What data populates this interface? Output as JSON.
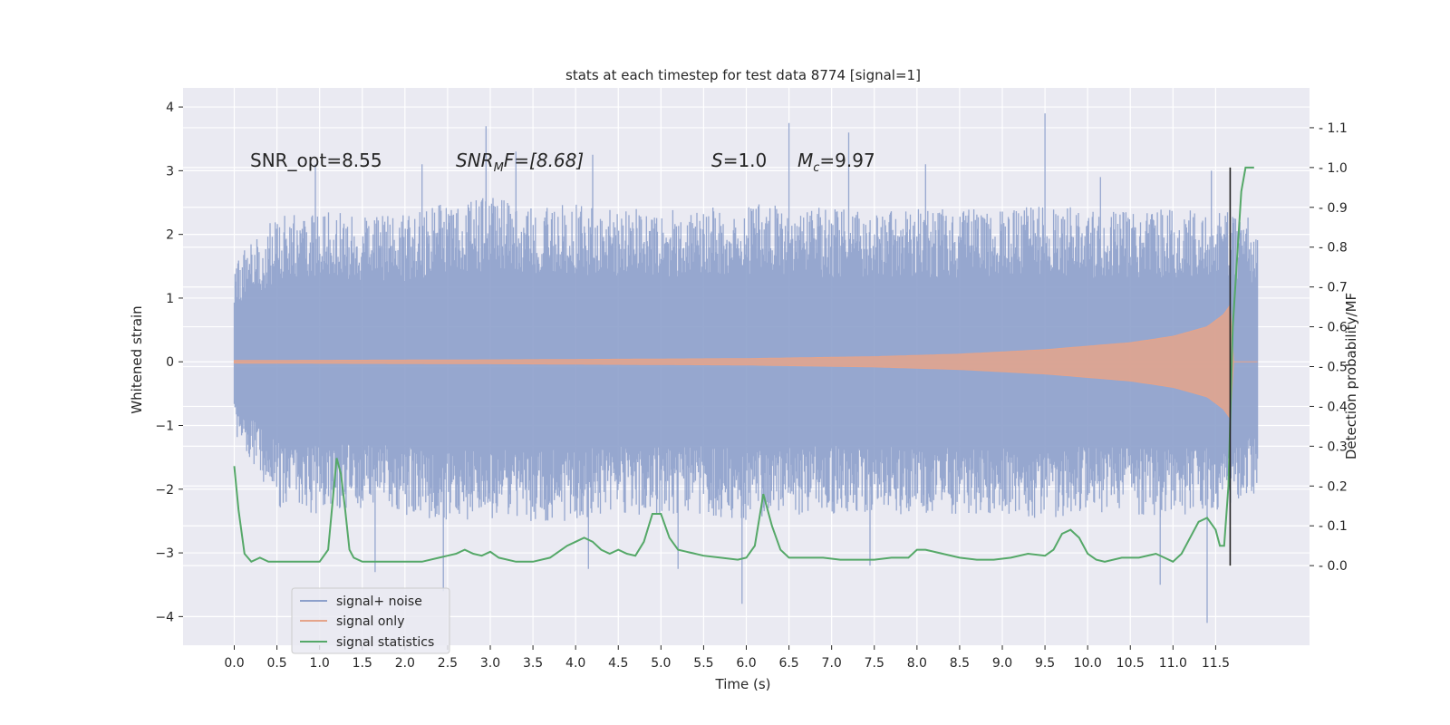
{
  "chart_data": {
    "type": "line",
    "title": "stats at each timestep for test data 8774 [signal=1]",
    "xlabel": "Time (s)",
    "ylabel": "Whitened strain",
    "ylabel_right": "Detection probability/MF",
    "xlim": [
      -0.6,
      12.6
    ],
    "ylim": [
      -4.45,
      4.3
    ],
    "ylim_right": [
      -0.2,
      1.2
    ],
    "x_ticks": [
      "0.0",
      "0.5",
      "1.0",
      "1.5",
      "2.0",
      "2.5",
      "3.0",
      "3.5",
      "4.0",
      "4.5",
      "5.0",
      "5.5",
      "6.0",
      "6.5",
      "7.0",
      "7.5",
      "8.0",
      "8.5",
      "9.0",
      "9.5",
      "10.0",
      "10.5",
      "11.0",
      "11.5"
    ],
    "y_ticks": [
      "4",
      "3",
      "2",
      "1",
      "0",
      "−1",
      "−2",
      "−3",
      "−4"
    ],
    "y_ticks_right": [
      "1.1",
      "1.0",
      "0.9",
      "0.8",
      "0.7",
      "0.6",
      "0.5",
      "0.4",
      "0.3",
      "0.2",
      "0.1",
      "0.0"
    ],
    "annotations": {
      "snr_opt": "SNR_opt=8.55",
      "snr_mf_name": "SNR",
      "snr_mf_sub": "M",
      "snr_mf_rest": "F=[8.68]",
      "s_name": "S",
      "s_rest": "=1.0",
      "mc_name": "M",
      "mc_sub": "c",
      "mc_rest": "=9.97"
    },
    "grid": true,
    "legend_position": "lower-left",
    "series": [
      {
        "name": "signal+ noise",
        "color": "#8da0cb",
        "envelope_upper": [
          [
            0.0,
            1.6
          ],
          [
            0.5,
            2.3
          ],
          [
            1.0,
            2.4
          ],
          [
            1.5,
            2.3
          ],
          [
            2.0,
            2.3
          ],
          [
            2.5,
            2.5
          ],
          [
            3.0,
            2.6
          ],
          [
            3.5,
            2.4
          ],
          [
            4.0,
            2.5
          ],
          [
            4.5,
            2.4
          ],
          [
            5.0,
            2.4
          ],
          [
            5.5,
            2.4
          ],
          [
            6.0,
            2.5
          ],
          [
            6.5,
            2.5
          ],
          [
            7.0,
            2.4
          ],
          [
            7.5,
            2.4
          ],
          [
            8.0,
            2.4
          ],
          [
            8.5,
            2.4
          ],
          [
            9.0,
            2.4
          ],
          [
            9.5,
            2.5
          ],
          [
            10.0,
            2.4
          ],
          [
            10.5,
            2.4
          ],
          [
            11.0,
            2.4
          ],
          [
            11.5,
            2.5
          ],
          [
            11.99,
            2.2
          ]
        ],
        "envelope_lower": [
          [
            0.0,
            -1.1
          ],
          [
            0.5,
            -2.3
          ],
          [
            1.0,
            -2.4
          ],
          [
            1.5,
            -2.3
          ],
          [
            2.0,
            -2.4
          ],
          [
            2.5,
            -2.5
          ],
          [
            3.0,
            -2.5
          ],
          [
            3.5,
            -2.5
          ],
          [
            4.0,
            -2.5
          ],
          [
            4.5,
            -2.4
          ],
          [
            5.0,
            -2.4
          ],
          [
            5.5,
            -2.4
          ],
          [
            6.0,
            -2.5
          ],
          [
            6.5,
            -2.4
          ],
          [
            7.0,
            -2.4
          ],
          [
            7.5,
            -2.4
          ],
          [
            8.0,
            -2.4
          ],
          [
            8.5,
            -2.4
          ],
          [
            9.0,
            -2.4
          ],
          [
            9.5,
            -2.5
          ],
          [
            10.0,
            -2.4
          ],
          [
            10.5,
            -2.4
          ],
          [
            11.0,
            -2.5
          ],
          [
            11.5,
            -2.4
          ],
          [
            11.99,
            -2.1
          ]
        ],
        "peaks_up": [
          [
            0.95,
            3.1
          ],
          [
            2.2,
            3.1
          ],
          [
            2.95,
            3.7
          ],
          [
            3.3,
            3.3
          ],
          [
            4.2,
            3.25
          ],
          [
            6.5,
            3.75
          ],
          [
            7.2,
            3.6
          ],
          [
            8.1,
            3.1
          ],
          [
            9.5,
            3.9
          ],
          [
            10.15,
            2.9
          ],
          [
            11.45,
            3.0
          ]
        ],
        "peaks_down": [
          [
            1.65,
            -3.3
          ],
          [
            2.45,
            -3.6
          ],
          [
            4.15,
            -3.25
          ],
          [
            5.2,
            -3.25
          ],
          [
            5.95,
            -3.8
          ],
          [
            7.45,
            -3.2
          ],
          [
            10.85,
            -3.5
          ],
          [
            11.4,
            -4.1
          ]
        ]
      },
      {
        "name": "signal only",
        "color": "#e5a48b",
        "amplitude": [
          [
            0.0,
            0.02
          ],
          [
            3.0,
            0.03
          ],
          [
            6.0,
            0.05
          ],
          [
            7.5,
            0.08
          ],
          [
            8.5,
            0.12
          ],
          [
            9.5,
            0.19
          ],
          [
            10.5,
            0.3
          ],
          [
            11.0,
            0.4
          ],
          [
            11.4,
            0.55
          ],
          [
            11.6,
            0.75
          ],
          [
            11.67,
            0.9
          ],
          [
            11.7,
            0.0
          ],
          [
            11.99,
            0.0
          ]
        ]
      },
      {
        "name": "signal statistics",
        "color": "#55a868",
        "x": [
          0.0,
          0.05,
          0.12,
          0.2,
          0.3,
          0.4,
          0.5,
          0.6,
          0.8,
          1.0,
          1.1,
          1.2,
          1.25,
          1.3,
          1.35,
          1.4,
          1.5,
          1.6,
          1.8,
          2.0,
          2.2,
          2.4,
          2.5,
          2.6,
          2.7,
          2.8,
          2.9,
          3.0,
          3.1,
          3.3,
          3.5,
          3.7,
          3.9,
          4.0,
          4.1,
          4.2,
          4.3,
          4.4,
          4.5,
          4.6,
          4.7,
          4.8,
          4.9,
          5.0,
          5.1,
          5.2,
          5.3,
          5.5,
          5.7,
          5.9,
          6.0,
          6.1,
          6.2,
          6.3,
          6.4,
          6.5,
          6.7,
          6.9,
          7.1,
          7.3,
          7.5,
          7.7,
          7.9,
          8.0,
          8.1,
          8.3,
          8.5,
          8.7,
          8.9,
          9.1,
          9.3,
          9.5,
          9.6,
          9.7,
          9.8,
          9.9,
          10.0,
          10.1,
          10.2,
          10.4,
          10.6,
          10.8,
          10.9,
          11.0,
          11.1,
          11.3,
          11.4,
          11.5,
          11.55,
          11.6,
          11.65,
          11.7,
          11.8,
          11.85,
          11.9,
          11.95
        ],
        "y": [
          0.25,
          0.14,
          0.03,
          0.01,
          0.02,
          0.01,
          0.01,
          0.01,
          0.01,
          0.01,
          0.04,
          0.27,
          0.23,
          0.14,
          0.04,
          0.02,
          0.01,
          0.01,
          0.01,
          0.01,
          0.01,
          0.02,
          0.025,
          0.03,
          0.04,
          0.03,
          0.025,
          0.035,
          0.02,
          0.01,
          0.01,
          0.02,
          0.05,
          0.06,
          0.07,
          0.06,
          0.04,
          0.03,
          0.04,
          0.03,
          0.025,
          0.06,
          0.13,
          0.13,
          0.07,
          0.04,
          0.035,
          0.025,
          0.02,
          0.015,
          0.02,
          0.05,
          0.18,
          0.1,
          0.04,
          0.02,
          0.02,
          0.02,
          0.015,
          0.015,
          0.015,
          0.02,
          0.02,
          0.04,
          0.04,
          0.03,
          0.02,
          0.015,
          0.015,
          0.02,
          0.03,
          0.025,
          0.04,
          0.08,
          0.09,
          0.07,
          0.03,
          0.015,
          0.01,
          0.02,
          0.02,
          0.03,
          0.02,
          0.01,
          0.03,
          0.11,
          0.12,
          0.09,
          0.05,
          0.05,
          0.2,
          0.6,
          0.94,
          1.0,
          1.0,
          1.0
        ]
      }
    ],
    "vertical_line": {
      "x": 11.67,
      "color": "#222222"
    }
  }
}
